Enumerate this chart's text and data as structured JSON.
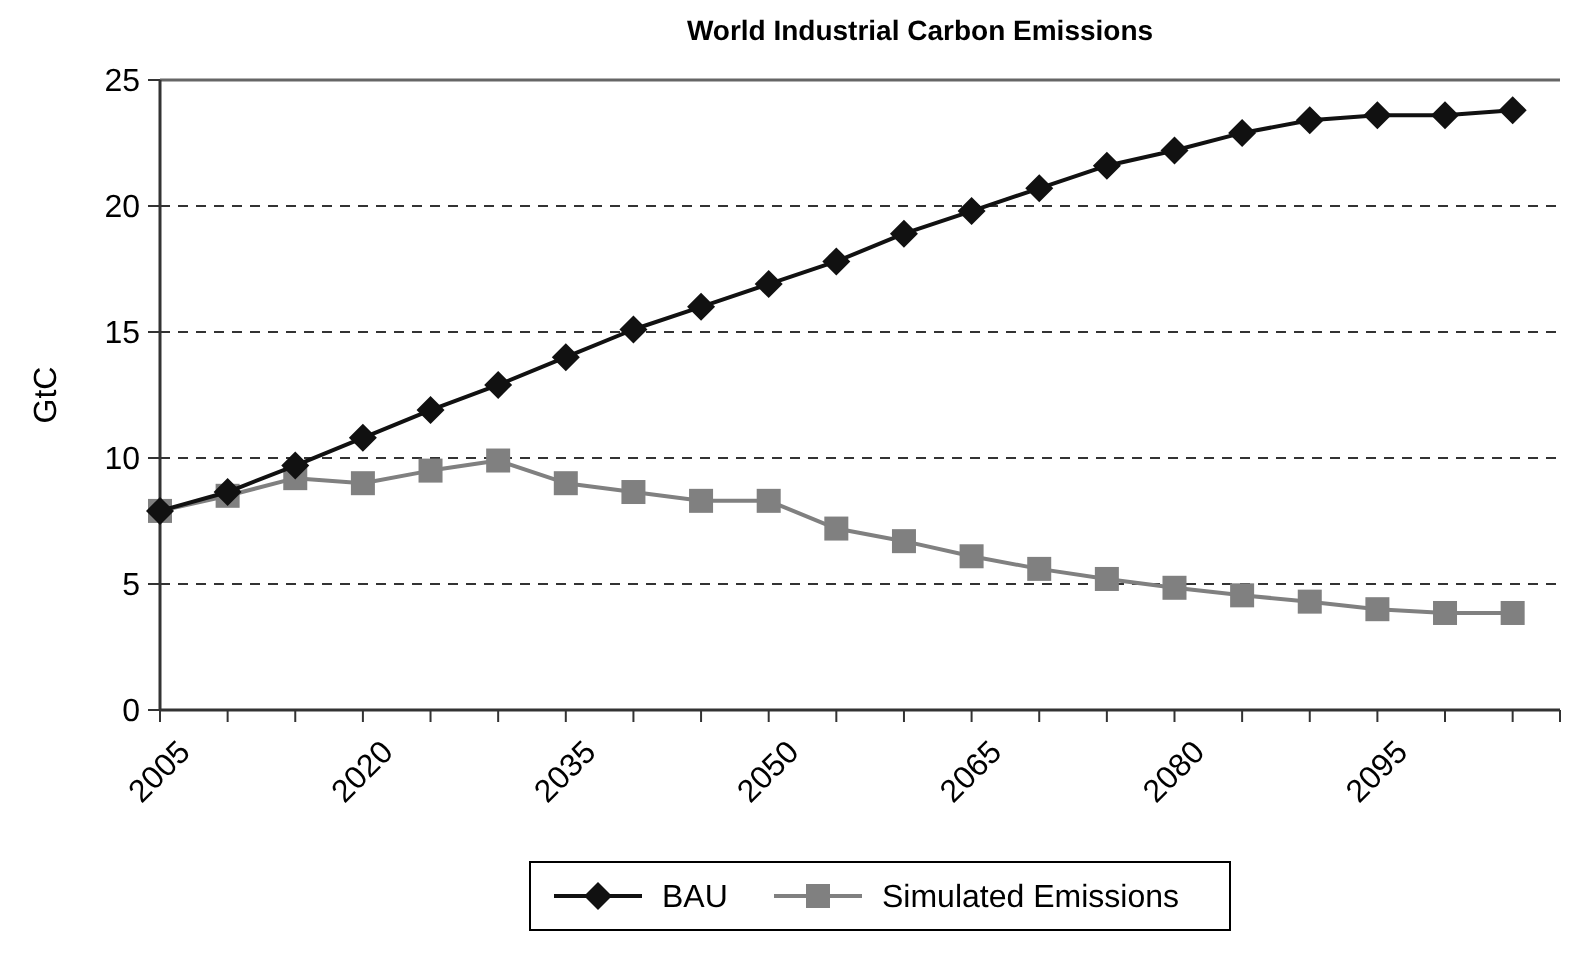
{
  "chart_data": {
    "type": "line",
    "title": "World Industrial Carbon Emissions",
    "ylabel": "GtC",
    "categories": [
      "2005",
      null,
      null,
      "2020",
      null,
      null,
      "2035",
      null,
      null,
      "2050",
      null,
      null,
      "2065",
      null,
      null,
      "2080",
      null,
      null,
      "2095",
      null,
      null
    ],
    "series": [
      {
        "name": "BAU",
        "color": "#111111",
        "marker": "diamond",
        "values": [
          7.9,
          8.65,
          9.7,
          10.8,
          11.9,
          12.9,
          14.0,
          15.1,
          16.0,
          16.9,
          17.8,
          18.9,
          19.8,
          20.7,
          21.6,
          22.2,
          22.9,
          23.4,
          23.6,
          23.6,
          23.8
        ]
      },
      {
        "name": "Simulated Emissions",
        "color": "#808080",
        "marker": "square",
        "values": [
          7.9,
          8.5,
          9.2,
          9.0,
          9.5,
          9.9,
          9.0,
          8.65,
          8.3,
          8.3,
          7.2,
          6.7,
          6.1,
          5.6,
          5.2,
          4.85,
          4.55,
          4.3,
          4.0,
          3.85,
          3.85
        ]
      }
    ],
    "ylim": [
      0,
      25
    ],
    "yticks": [
      0,
      5,
      10,
      15,
      20,
      25
    ],
    "grid": "y",
    "legend": "bottom",
    "line_style": "solid"
  }
}
